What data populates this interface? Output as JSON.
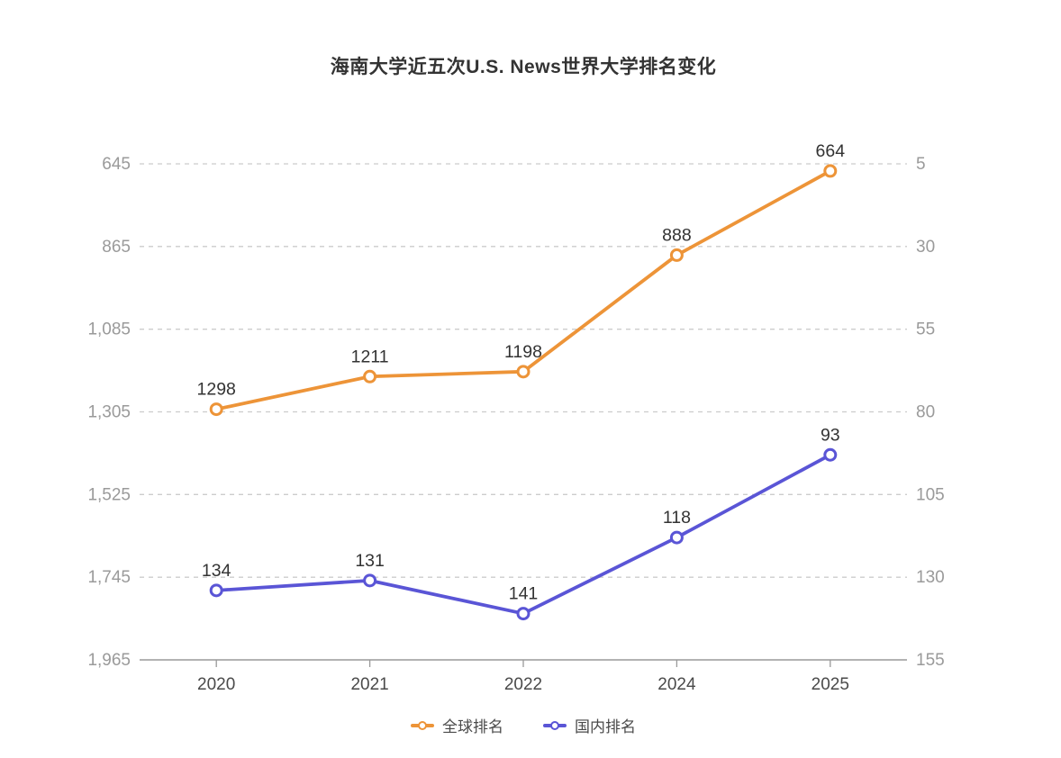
{
  "title": "海南大学近五次U.S. News世界大学排名变化",
  "chart_data": {
    "type": "line",
    "title": "海南大学近五次U.S. News世界大学排名变化",
    "categories": [
      "2020",
      "2021",
      "2022",
      "2024",
      "2025"
    ],
    "series": [
      {
        "id": "global-ranking",
        "name": "全球排名",
        "axis": "left",
        "color": "#ED9438",
        "values": [
          1298,
          1211,
          1198,
          888,
          664
        ]
      },
      {
        "id": "domestic-ranking",
        "name": "国内排名",
        "axis": "right",
        "color": "#5A55D6",
        "values": [
          134,
          131,
          141,
          118,
          93
        ]
      }
    ],
    "left_axis": {
      "min": 645,
      "max": 1965,
      "tick_labels": [
        "645",
        "865",
        "1,085",
        "1,305",
        "1,525",
        "1,745",
        "1,965"
      ],
      "direction": "values increase downward (rank axis)"
    },
    "right_axis": {
      "min": 5,
      "max": 155,
      "tick_labels": [
        "5",
        "30",
        "55",
        "80",
        "105",
        "130",
        "155"
      ],
      "direction": "values increase downward (rank axis)"
    },
    "grid": true,
    "legend_position": "bottom",
    "legend": [
      {
        "label": "全球排名",
        "color": "#ED9438"
      },
      {
        "label": "国内排名",
        "color": "#5A55D6"
      }
    ],
    "style": {
      "grid_color": "#cccccc",
      "axis_line_color": "#999999",
      "axis_label_color": "#9a9a9a",
      "x_label_color": "#4a4a4a",
      "data_label_color": "#333333",
      "background": "#ffffff"
    }
  }
}
